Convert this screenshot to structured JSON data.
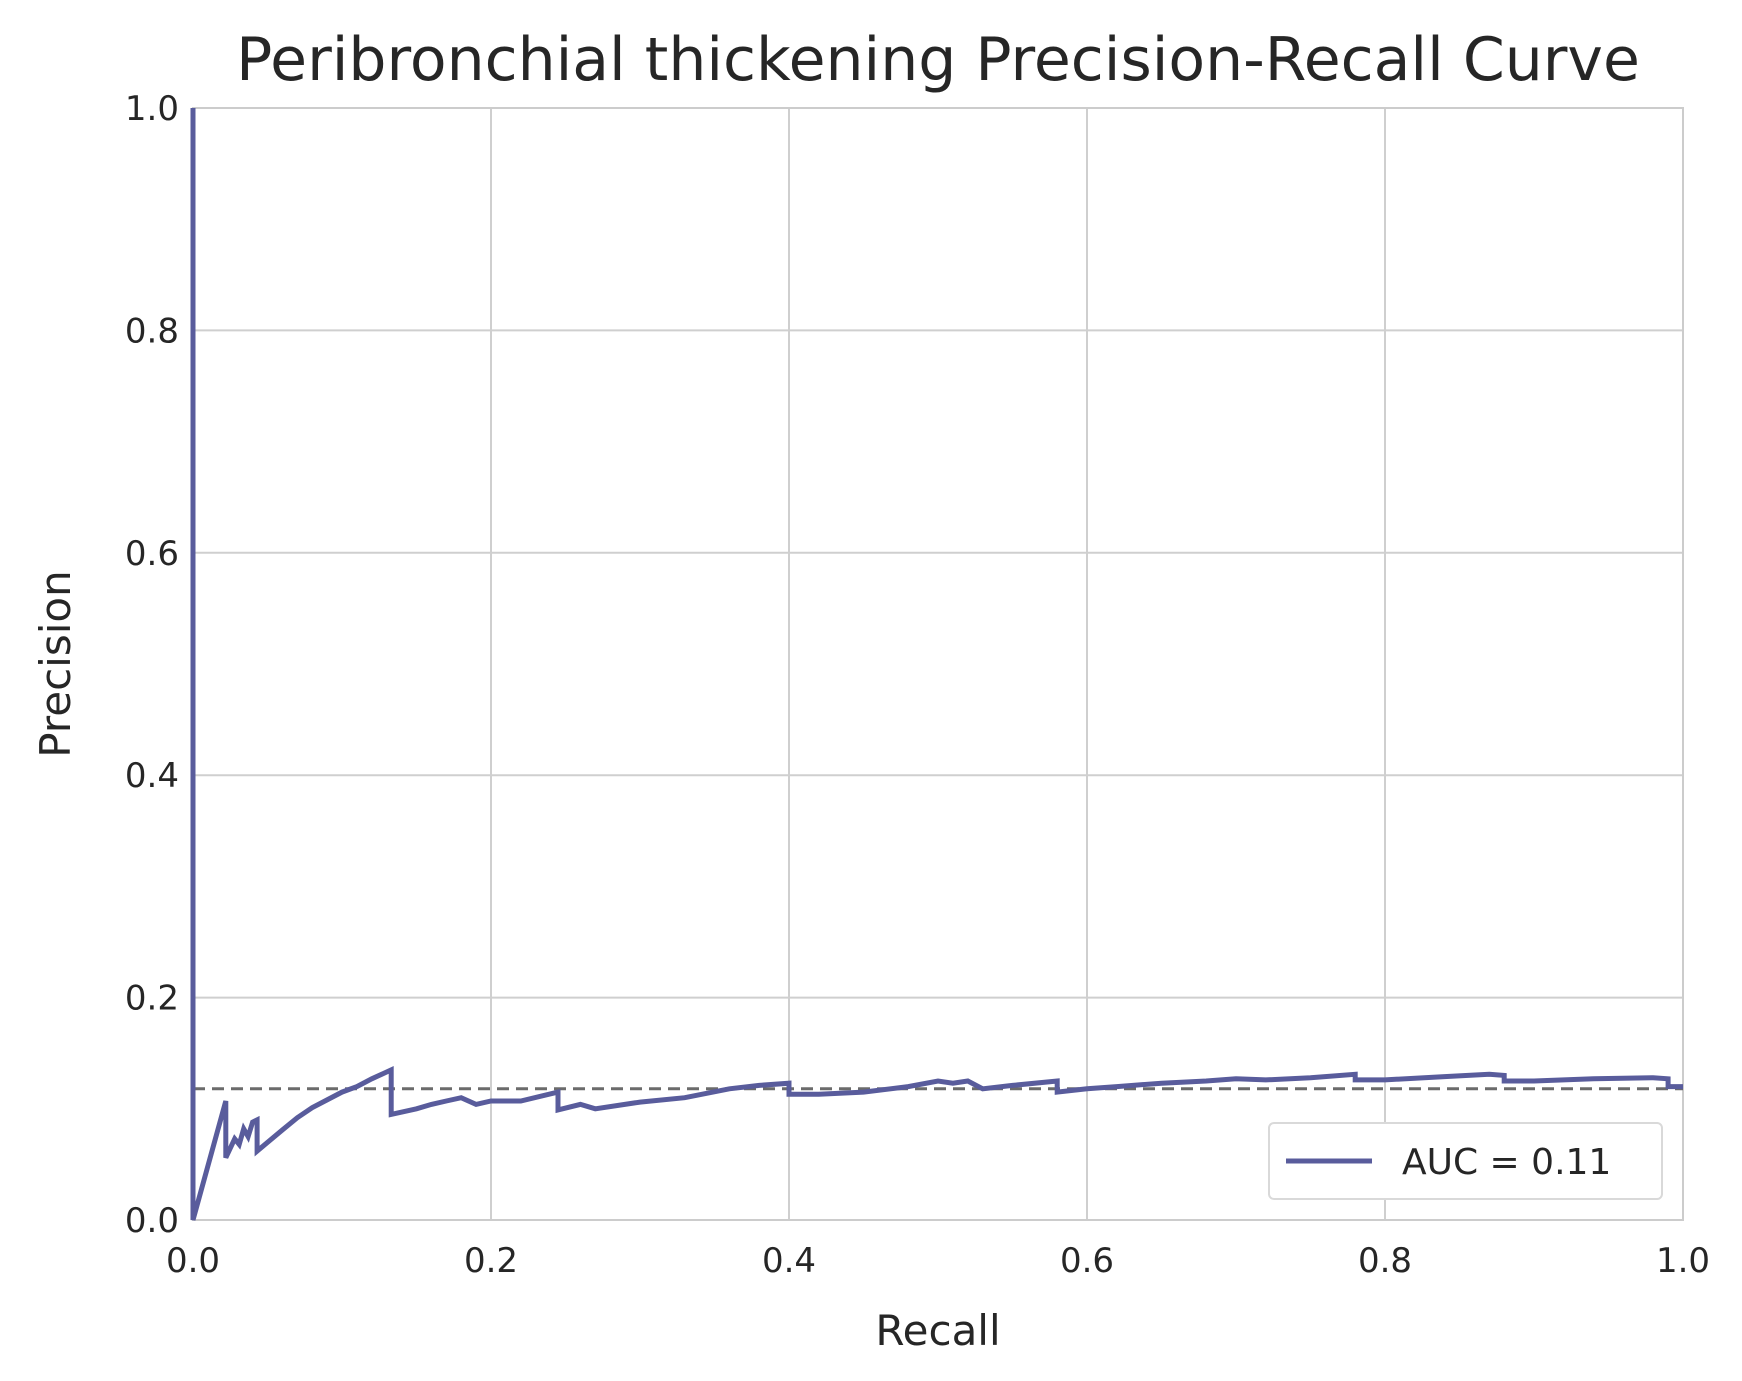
{
  "chart_data": {
    "type": "line",
    "title": "Peribronchial thickening Precision-Recall Curve",
    "xlabel": "Recall",
    "ylabel": "Precision",
    "xlim": [
      0.0,
      1.0
    ],
    "ylim": [
      0.0,
      1.0
    ],
    "xticks": [
      "0.0",
      "0.2",
      "0.4",
      "0.6",
      "0.8",
      "1.0"
    ],
    "yticks": [
      "0.0",
      "0.2",
      "0.4",
      "0.6",
      "0.8",
      "1.0"
    ],
    "grid": true,
    "legend": {
      "position": "lower-right",
      "entries": [
        "AUC = 0.11"
      ]
    },
    "colors": {
      "curve": "#595c9c",
      "baseline": "#6b6b6b",
      "grid": "#cfcfcf",
      "axes": "#cccccc"
    },
    "baseline": {
      "style": "dashed",
      "y": 0.118
    },
    "series": [
      {
        "name": "AUC = 0.11",
        "x": [
          0.0,
          0.0,
          0.0,
          0.022,
          0.022,
          0.028,
          0.031,
          0.034,
          0.037,
          0.04,
          0.043,
          0.043,
          0.06,
          0.07,
          0.08,
          0.09,
          0.1,
          0.11,
          0.12,
          0.133,
          0.133,
          0.15,
          0.16,
          0.17,
          0.18,
          0.19,
          0.2,
          0.22,
          0.245,
          0.245,
          0.26,
          0.27,
          0.3,
          0.33,
          0.36,
          0.38,
          0.4,
          0.4,
          0.42,
          0.45,
          0.48,
          0.5,
          0.51,
          0.52,
          0.53,
          0.55,
          0.58,
          0.58,
          0.6,
          0.62,
          0.65,
          0.68,
          0.7,
          0.72,
          0.75,
          0.78,
          0.78,
          0.8,
          0.84,
          0.87,
          0.88,
          0.88,
          0.9,
          0.94,
          0.98,
          0.99,
          0.99,
          1.0
        ],
        "y": [
          1.0,
          0.0,
          0.0,
          0.107,
          0.056,
          0.073,
          0.068,
          0.082,
          0.075,
          0.088,
          0.09,
          0.062,
          0.081,
          0.092,
          0.101,
          0.108,
          0.115,
          0.12,
          0.127,
          0.135,
          0.095,
          0.1,
          0.104,
          0.107,
          0.11,
          0.104,
          0.107,
          0.107,
          0.115,
          0.099,
          0.104,
          0.1,
          0.106,
          0.11,
          0.118,
          0.121,
          0.123,
          0.113,
          0.113,
          0.115,
          0.12,
          0.125,
          0.123,
          0.125,
          0.118,
          0.121,
          0.125,
          0.115,
          0.118,
          0.12,
          0.123,
          0.125,
          0.127,
          0.126,
          0.128,
          0.131,
          0.126,
          0.126,
          0.129,
          0.131,
          0.13,
          0.125,
          0.125,
          0.127,
          0.128,
          0.127,
          0.12,
          0.12
        ]
      }
    ]
  }
}
